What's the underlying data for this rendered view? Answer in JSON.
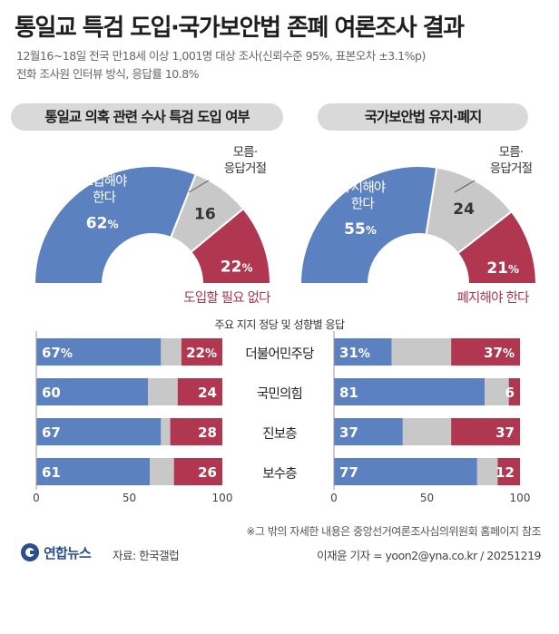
{
  "title": "통일교 특검 도입·국가보안법 존폐 여론조사 결과",
  "subtitle_line1": "12월16~18일 전국 만18세 이상 1,001명 대상 조사(신뢰수준 95%, 표본오차 ±3.1%p)",
  "subtitle_line2": "전화 조사원 인터뷰 방식, 응답률 10.8%",
  "colors": {
    "blue": "#5b81c0",
    "gray": "#c8c8c8",
    "red": "#b0374f"
  },
  "chart_data": [
    {
      "type": "pie",
      "title": "통일교 의혹 관련 수사 특검 도입 여부",
      "style": "semicircle",
      "slices": [
        {
          "label": "도입해야 한다",
          "value": 62
        },
        {
          "label": "모름·응답거절",
          "value": 16
        },
        {
          "label": "도입할 필요 없다",
          "value": 22
        }
      ]
    },
    {
      "type": "pie",
      "title": "국가보안법 유지·폐지",
      "style": "semicircle",
      "slices": [
        {
          "label": "유지해야 한다",
          "value": 55
        },
        {
          "label": "모름·응답거절",
          "value": 24
        },
        {
          "label": "폐지해야 한다",
          "value": 21
        }
      ]
    },
    {
      "type": "bar",
      "orientation": "horizontal",
      "stacked": true,
      "title": "주요 지지 정당 및 성향별 응답",
      "categories": [
        "더불어민주당",
        "국민의힘",
        "진보층",
        "보수층"
      ],
      "panels": [
        {
          "name": "통일교 의혹 관련 수사 특검 도입 여부",
          "series": [
            {
              "name": "도입해야 한다",
              "values": [
                67,
                60,
                67,
                61
              ]
            },
            {
              "name": "모름·응답거절",
              "values": [
                11,
                16,
                5,
                13
              ]
            },
            {
              "name": "도입할 필요 없다",
              "values": [
                22,
                24,
                28,
                26
              ]
            }
          ]
        },
        {
          "name": "국가보안법 유지·폐지",
          "series": [
            {
              "name": "유지해야 한다",
              "values": [
                31,
                81,
                37,
                77
              ]
            },
            {
              "name": "모름·응답거절",
              "values": [
                32,
                13,
                26,
                11
              ]
            },
            {
              "name": "폐지해야 한다",
              "values": [
                37,
                6,
                37,
                12
              ]
            }
          ]
        }
      ],
      "xticks": [
        "0",
        "50",
        "100"
      ],
      "xlim": [
        0,
        100
      ]
    }
  ],
  "footnote": "※그 밖의 자세한 내용은 중앙선거여론조사심의위원회 홈페이지 참조",
  "logo_text": "연합뉴스",
  "source": "자료: 한국갤럽",
  "credit": "이재윤 기자 = yoon2@yna.co.kr / 20251219"
}
